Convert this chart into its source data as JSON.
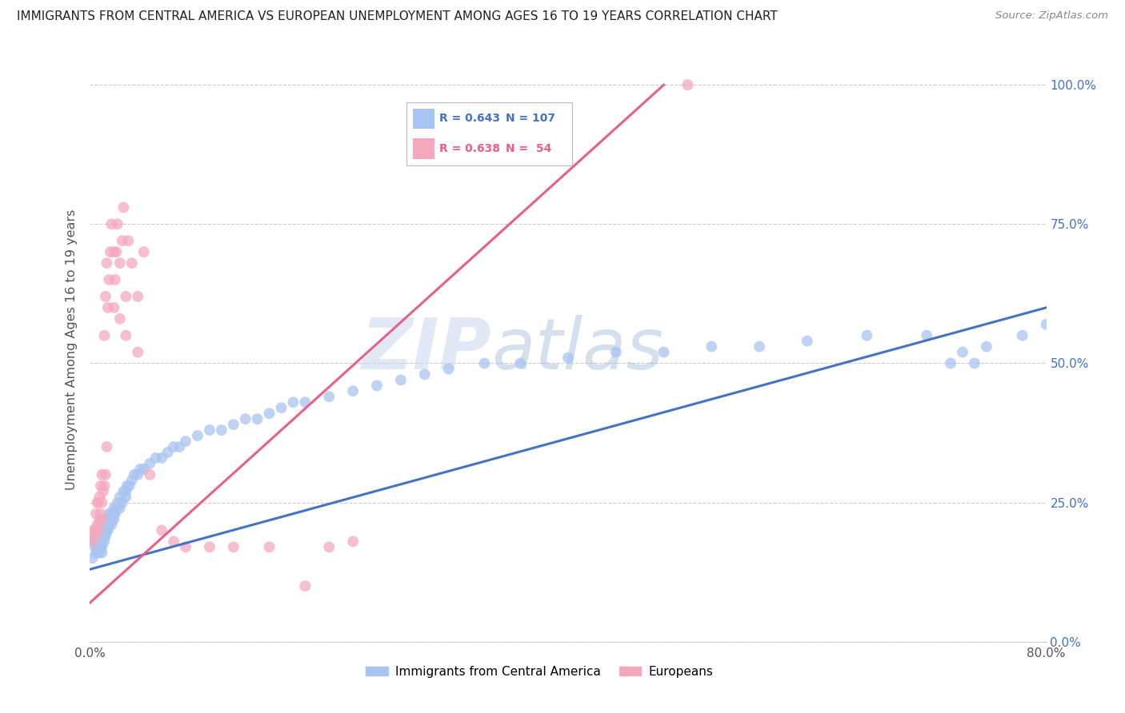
{
  "title": "IMMIGRANTS FROM CENTRAL AMERICA VS EUROPEAN UNEMPLOYMENT AMONG AGES 16 TO 19 YEARS CORRELATION CHART",
  "source": "Source: ZipAtlas.com",
  "ylabel_label": "Unemployment Among Ages 16 to 19 years",
  "legend_blue_r": "0.643",
  "legend_blue_n": "107",
  "legend_pink_r": "0.638",
  "legend_pink_n": " 54",
  "blue_color": "#a8c4f0",
  "pink_color": "#f4a8be",
  "blue_line_color": "#4472c4",
  "pink_line_color": "#e8608a",
  "watermark_zip": "ZIP",
  "watermark_atlas": "atlas",
  "blue_label": "Immigrants from Central America",
  "pink_label": "Europeans",
  "xlim": [
    0.0,
    0.8
  ],
  "ylim": [
    0.0,
    1.05
  ],
  "blue_scatter_x": [
    0.002,
    0.003,
    0.004,
    0.004,
    0.005,
    0.005,
    0.005,
    0.006,
    0.006,
    0.006,
    0.007,
    0.007,
    0.007,
    0.007,
    0.007,
    0.008,
    0.008,
    0.008,
    0.008,
    0.008,
    0.009,
    0.009,
    0.009,
    0.009,
    0.01,
    0.01,
    0.01,
    0.01,
    0.01,
    0.01,
    0.01,
    0.012,
    0.012,
    0.012,
    0.013,
    0.013,
    0.013,
    0.014,
    0.014,
    0.014,
    0.015,
    0.015,
    0.016,
    0.016,
    0.017,
    0.018,
    0.018,
    0.019,
    0.02,
    0.02,
    0.02,
    0.021,
    0.022,
    0.023,
    0.025,
    0.025,
    0.027,
    0.028,
    0.03,
    0.03,
    0.031,
    0.033,
    0.035,
    0.037,
    0.04,
    0.042,
    0.045,
    0.05,
    0.055,
    0.06,
    0.065,
    0.07,
    0.075,
    0.08,
    0.09,
    0.1,
    0.11,
    0.12,
    0.13,
    0.14,
    0.15,
    0.16,
    0.17,
    0.18,
    0.2,
    0.22,
    0.24,
    0.26,
    0.28,
    0.3,
    0.33,
    0.36,
    0.4,
    0.44,
    0.48,
    0.52,
    0.56,
    0.6,
    0.65,
    0.7,
    0.72,
    0.73,
    0.74,
    0.75,
    0.78,
    0.8
  ],
  "blue_scatter_y": [
    0.15,
    0.18,
    0.17,
    0.2,
    0.16,
    0.18,
    0.19,
    0.17,
    0.18,
    0.2,
    0.16,
    0.17,
    0.18,
    0.19,
    0.2,
    0.16,
    0.17,
    0.18,
    0.19,
    0.21,
    0.17,
    0.18,
    0.19,
    0.2,
    0.16,
    0.17,
    0.18,
    0.19,
    0.2,
    0.21,
    0.22,
    0.18,
    0.19,
    0.2,
    0.19,
    0.2,
    0.21,
    0.2,
    0.21,
    0.22,
    0.2,
    0.22,
    0.21,
    0.23,
    0.22,
    0.21,
    0.23,
    0.22,
    0.22,
    0.23,
    0.24,
    0.23,
    0.24,
    0.25,
    0.24,
    0.26,
    0.25,
    0.27,
    0.26,
    0.27,
    0.28,
    0.28,
    0.29,
    0.3,
    0.3,
    0.31,
    0.31,
    0.32,
    0.33,
    0.33,
    0.34,
    0.35,
    0.35,
    0.36,
    0.37,
    0.38,
    0.38,
    0.39,
    0.4,
    0.4,
    0.41,
    0.42,
    0.43,
    0.43,
    0.44,
    0.45,
    0.46,
    0.47,
    0.48,
    0.49,
    0.5,
    0.5,
    0.51,
    0.52,
    0.52,
    0.53,
    0.53,
    0.54,
    0.55,
    0.55,
    0.5,
    0.52,
    0.5,
    0.53,
    0.55,
    0.57
  ],
  "pink_scatter_x": [
    0.002,
    0.003,
    0.004,
    0.005,
    0.005,
    0.006,
    0.006,
    0.007,
    0.007,
    0.008,
    0.008,
    0.009,
    0.009,
    0.01,
    0.01,
    0.01,
    0.011,
    0.012,
    0.012,
    0.013,
    0.013,
    0.014,
    0.014,
    0.015,
    0.016,
    0.017,
    0.018,
    0.02,
    0.02,
    0.021,
    0.022,
    0.023,
    0.025,
    0.025,
    0.027,
    0.028,
    0.03,
    0.03,
    0.032,
    0.035,
    0.04,
    0.04,
    0.045,
    0.05,
    0.06,
    0.07,
    0.08,
    0.1,
    0.12,
    0.15,
    0.18,
    0.2,
    0.22,
    0.5
  ],
  "pink_scatter_y": [
    0.18,
    0.2,
    0.19,
    0.2,
    0.23,
    0.21,
    0.25,
    0.2,
    0.25,
    0.22,
    0.26,
    0.23,
    0.28,
    0.22,
    0.25,
    0.3,
    0.27,
    0.28,
    0.55,
    0.3,
    0.62,
    0.35,
    0.68,
    0.6,
    0.65,
    0.7,
    0.75,
    0.6,
    0.7,
    0.65,
    0.7,
    0.75,
    0.58,
    0.68,
    0.72,
    0.78,
    0.55,
    0.62,
    0.72,
    0.68,
    0.52,
    0.62,
    0.7,
    0.3,
    0.2,
    0.18,
    0.17,
    0.17,
    0.17,
    0.17,
    0.1,
    0.17,
    0.18,
    1.0
  ],
  "blue_line": {
    "x0": 0.0,
    "x1": 0.8,
    "y0": 0.13,
    "y1": 0.6
  },
  "pink_line": {
    "x0": 0.0,
    "x1": 0.48,
    "y0": 0.07,
    "y1": 1.0
  }
}
